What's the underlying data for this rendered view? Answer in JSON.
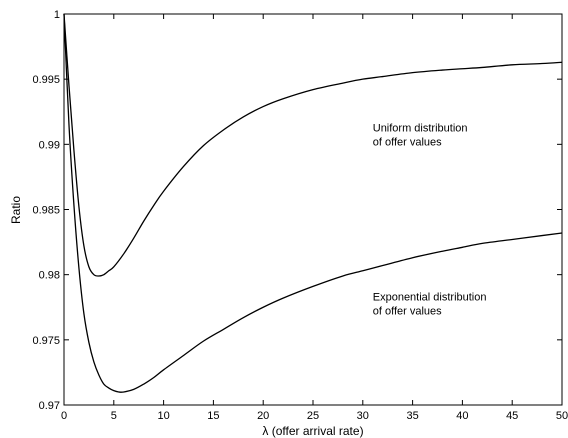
{
  "chart_data": {
    "type": "line",
    "xlabel": "λ (offer arrival rate)",
    "ylabel": "Ratio",
    "xlim": [
      0,
      50
    ],
    "ylim": [
      0.97,
      1.0
    ],
    "x_ticks": [
      0,
      5,
      10,
      15,
      20,
      25,
      30,
      35,
      40,
      45,
      50
    ],
    "y_ticks": [
      0.97,
      0.975,
      0.98,
      0.985,
      0.99,
      0.995,
      1
    ],
    "x_tick_labels": [
      "0",
      "5",
      "10",
      "15",
      "20",
      "25",
      "30",
      "35",
      "40",
      "45",
      "50"
    ],
    "y_tick_labels": [
      "0.97",
      "0.975",
      "0.98",
      "0.985",
      "0.99",
      "0.995",
      "1"
    ],
    "grid": false,
    "legend": "none",
    "series": [
      {
        "x": [
          0,
          0.5,
          1,
          1.5,
          2,
          2.5,
          3,
          3.5,
          4,
          4.5,
          5,
          6,
          7,
          8,
          9,
          10,
          12,
          14,
          16,
          18,
          20,
          22,
          25,
          28,
          30,
          32,
          35,
          38,
          40,
          42,
          45,
          48,
          50
        ],
        "values": [
          1.0,
          0.9945,
          0.9895,
          0.9852,
          0.9822,
          0.9806,
          0.98,
          0.9799,
          0.98,
          0.9803,
          0.9806,
          0.9816,
          0.9828,
          0.9841,
          0.9853,
          0.9864,
          0.9883,
          0.9899,
          0.9911,
          0.9921,
          0.9929,
          0.9935,
          0.9942,
          0.9947,
          0.995,
          0.9952,
          0.9955,
          0.9957,
          0.9958,
          0.9959,
          0.9961,
          0.9962,
          0.9963
        ]
      },
      {
        "x": [
          0,
          0.5,
          1,
          1.5,
          2,
          2.5,
          3,
          3.5,
          4,
          4.5,
          5,
          5.5,
          6,
          7,
          8,
          9,
          10,
          12,
          14,
          16,
          18,
          20,
          22,
          25,
          28,
          30,
          32,
          35,
          38,
          40,
          42,
          45,
          48,
          50
        ],
        "values": [
          1.0,
          0.9915,
          0.9853,
          0.9805,
          0.977,
          0.9748,
          0.9733,
          0.9723,
          0.9716,
          0.9713,
          0.9711,
          0.971,
          0.971,
          0.9712,
          0.9716,
          0.9721,
          0.9727,
          0.9738,
          0.9749,
          0.9758,
          0.9767,
          0.9775,
          0.9782,
          0.9791,
          0.9799,
          0.9803,
          0.9807,
          0.9813,
          0.9818,
          0.9821,
          0.9824,
          0.9827,
          0.983,
          0.9832
        ]
      }
    ],
    "annotations": [
      {
        "lines": [
          "Uniform distribution",
          "of offer values"
        ],
        "x": 31,
        "y": 0.991
      },
      {
        "lines": [
          "Exponential distribution",
          "of offer values"
        ],
        "x": 31,
        "y": 0.978
      }
    ]
  }
}
